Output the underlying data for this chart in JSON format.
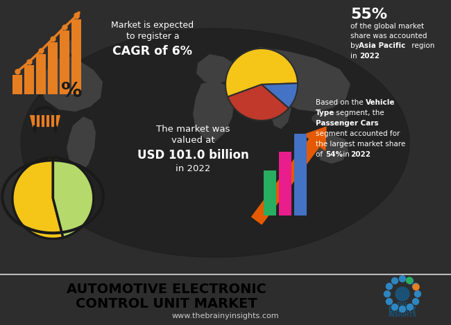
{
  "bg_color": "#2d2d2d",
  "footer_bg": "#ffffff",
  "footer_bar_bg": "#3a3a3a",
  "title_text_line1": "AUTOMOTIVE ELECTRONIC",
  "title_text_line2": "CONTROL UNIT MARKET",
  "website": "www.thebrainyinsights.com",
  "cagr_text_line1": "Market is expected",
  "cagr_text_line2": "to register a",
  "cagr_bold": "CAGR of 6%",
  "pie1_slices": [
    55,
    12,
    33
  ],
  "pie1_colors": [
    "#f5c518",
    "#4472c4",
    "#c0392b"
  ],
  "pie1_percent": "55%",
  "market_val_line1": "The market was",
  "market_val_line2": "valued at",
  "market_val_bold": "USD 101.0 billion",
  "market_val_line3": "in 2022",
  "bar_colors_bottom": [
    "#27ae60",
    "#e91e8c",
    "#4472c4"
  ],
  "arrow_color": "#e55a00",
  "pie2_slices": [
    54,
    46
  ],
  "pie2_colors": [
    "#f5c518",
    "#b5d96a"
  ],
  "orange": "#e67e22",
  "dark_orange": "#e55a00",
  "light_green": "#b5d96a",
  "yellow": "#f5c518",
  "white": "#ffffff",
  "map_color": "#404040",
  "logo_blue": "#2e86c1",
  "logo_dark": "#1a5276"
}
